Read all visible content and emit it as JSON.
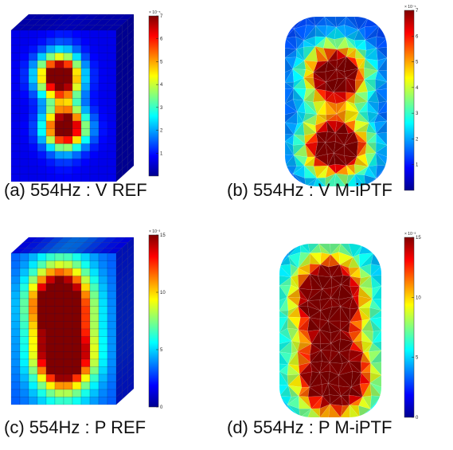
{
  "colors": {
    "jet": [
      "#00008f",
      "#0000ff",
      "#0080ff",
      "#00ffff",
      "#80ff80",
      "#ffff00",
      "#ff8000",
      "#ff0000",
      "#800000"
    ]
  },
  "panels": [
    {
      "id": "a",
      "caption": "(a) 554Hz : V REF",
      "model": "voxel-box",
      "colorbar": {
        "exponent": "× 10⁻⁵",
        "ticks": [
          "1",
          "2",
          "3",
          "4",
          "5",
          "6",
          "7"
        ],
        "range": [
          0,
          7
        ]
      }
    },
    {
      "id": "b",
      "caption": "(b) 554Hz : V M-iPTF",
      "model": "tetra-mesh",
      "colorbar": {
        "exponent": "× 10⁻⁵",
        "ticks": [
          "1",
          "2",
          "3",
          "4",
          "5",
          "6",
          "7"
        ],
        "range": [
          0,
          7
        ]
      }
    },
    {
      "id": "c",
      "caption": "(c) 554Hz : P REF",
      "model": "voxel-box",
      "colorbar": {
        "exponent": "× 10⁻³",
        "ticks": [
          "0",
          "5",
          "10",
          "15"
        ],
        "range": [
          0,
          15
        ]
      }
    },
    {
      "id": "d",
      "caption": "(d) 554Hz : P M-iPTF",
      "model": "tetra-mesh",
      "colorbar": {
        "exponent": "× 10⁻³",
        "ticks": [
          "0",
          "5",
          "10",
          "15"
        ],
        "range": [
          0,
          15
        ]
      }
    }
  ]
}
